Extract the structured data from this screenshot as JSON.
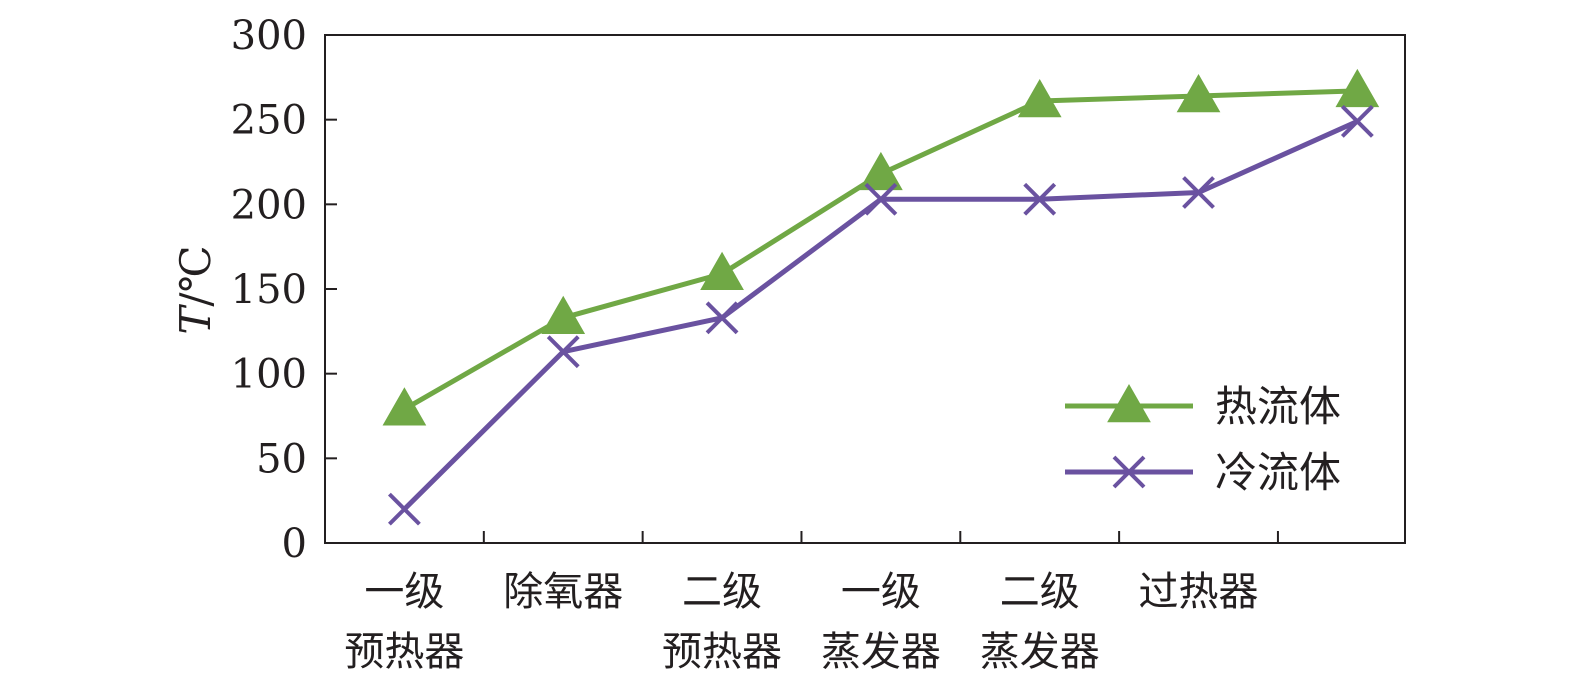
{
  "chart_data": {
    "type": "line",
    "categories": [
      [
        "一级",
        "预热器"
      ],
      [
        "除氧器"
      ],
      [
        "二级",
        "预热器"
      ],
      [
        "一级",
        "蒸发器"
      ],
      [
        "二级",
        "蒸发器"
      ],
      [
        "过热器"
      ],
      []
    ],
    "series": [
      {
        "name": "热流体",
        "values": [
          79,
          133,
          159,
          218,
          261,
          264,
          267
        ],
        "color": "#70a845",
        "marker": "triangle-icon"
      },
      {
        "name": "冷流体",
        "values": [
          20,
          113,
          133,
          203,
          203,
          207,
          249
        ],
        "color": "#6a52a0",
        "marker": "x-icon"
      }
    ],
    "ylabel": "T/℃",
    "ylabel_parts": {
      "italic": "T",
      "rest": "/℃"
    },
    "ylim": [
      0,
      300
    ],
    "yticks": [
      "0",
      "50",
      "100",
      "150",
      "200",
      "250",
      "300"
    ],
    "grid": false,
    "legend_position": "lower-right"
  }
}
